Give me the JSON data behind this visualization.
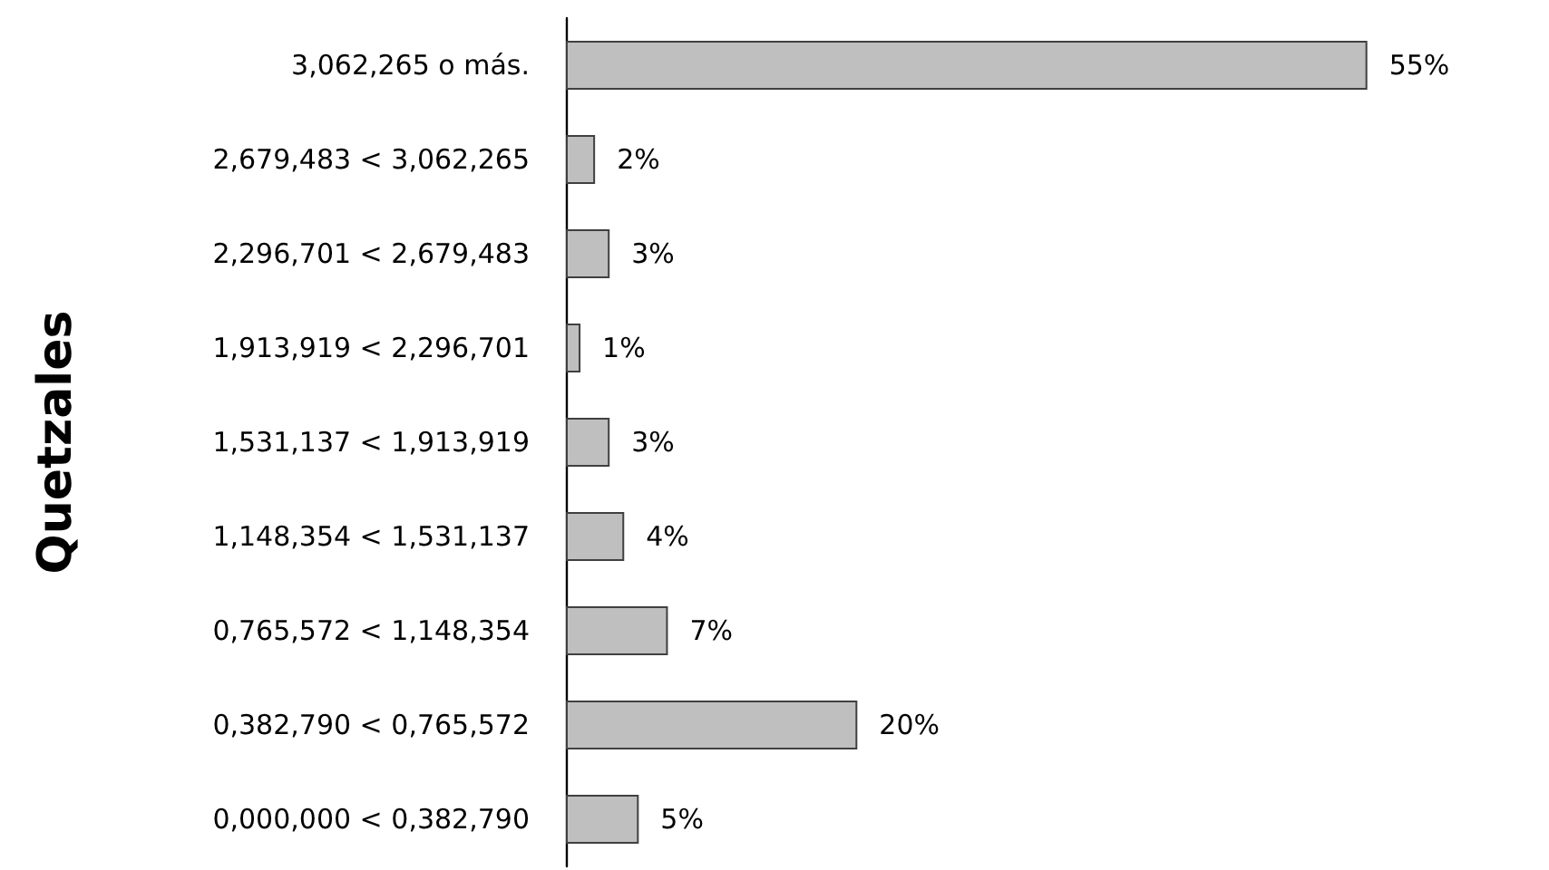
{
  "chart_data": {
    "type": "bar",
    "orientation": "horizontal",
    "ylabel": "Quetzales",
    "categories": [
      "3,062,265 o más.",
      "2,679,483 < 3,062,265",
      "2,296,701 < 2,679,483",
      "1,913,919 < 2,296,701",
      "1,531,137 < 1,913,919",
      "1,148,354 < 1,531,137",
      "0,765,572 < 1,148,354",
      "0,382,790 < 0,765,572",
      "0,000,000 < 0,382,790"
    ],
    "values": [
      55,
      2,
      3,
      1,
      3,
      4,
      7,
      20,
      5
    ],
    "value_labels": [
      "55%",
      "2%",
      "3%",
      "1%",
      "3%",
      "4%",
      "7%",
      "20%",
      "5%"
    ],
    "color": "#bfbfbf",
    "tick_labels": "y"
  }
}
